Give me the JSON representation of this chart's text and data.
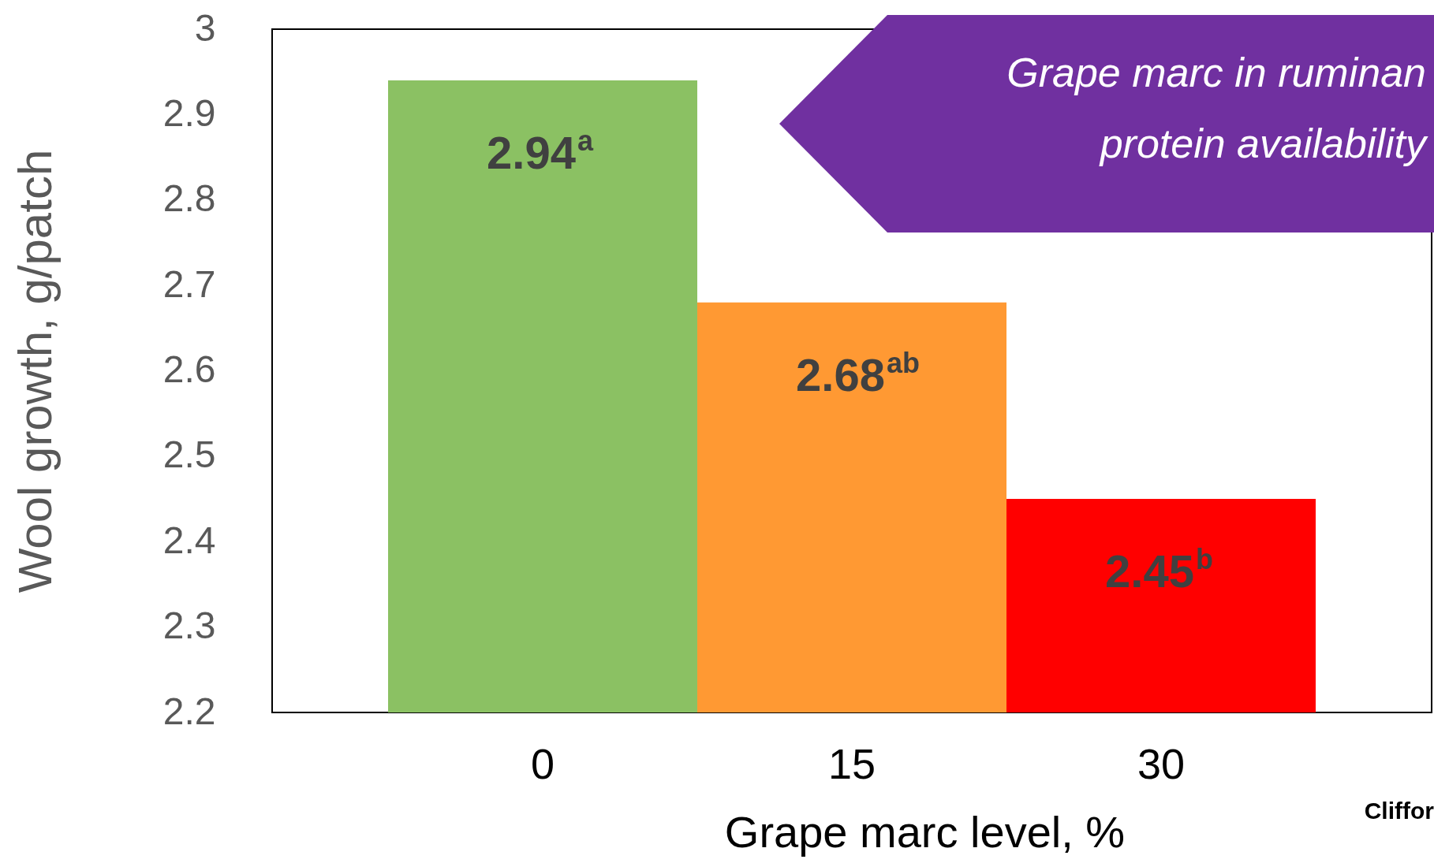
{
  "chart_data": {
    "type": "bar",
    "xlabel": "Grape marc level, %",
    "ylabel": "Wool growth, g/patch",
    "categories": [
      "0",
      "15",
      "30"
    ],
    "values": [
      2.94,
      2.68,
      2.45
    ],
    "value_labels": [
      "2.94$^{a}$",
      "2.68$^{ab}$",
      "2.45$^{b}$"
    ],
    "colors": [
      "#8bc163",
      "#ff9933",
      "#ff0000"
    ],
    "ylim": [
      2.2,
      3
    ],
    "yticks": [
      2.2,
      2.3,
      2.4,
      2.5,
      2.6,
      2.7,
      2.8,
      2.9,
      3
    ],
    "grid": false,
    "legend": false,
    "annotations": [
      "Grape marc in ruminan",
      "protein availability",
      "Cliffor"
    ]
  }
}
